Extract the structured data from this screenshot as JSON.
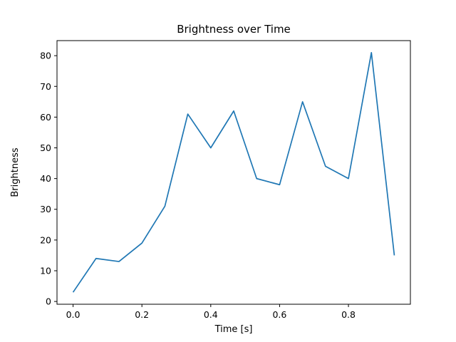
{
  "chart_data": {
    "type": "line",
    "title": "Brightness over Time",
    "xlabel": "Time [s]",
    "ylabel": "Brightness",
    "x": [
      0.0,
      0.0667,
      0.1333,
      0.2,
      0.2667,
      0.3333,
      0.4,
      0.4667,
      0.5333,
      0.6,
      0.6667,
      0.7333,
      0.8,
      0.8667,
      0.9333
    ],
    "y": [
      3,
      14,
      13,
      19,
      31,
      61,
      50,
      62,
      40,
      38,
      65,
      44,
      40,
      81,
      15
    ],
    "xlim": [
      -0.0467,
      0.98
    ],
    "ylim": [
      -0.9,
      84.9
    ],
    "xticks": [
      0.0,
      0.2,
      0.4,
      0.6,
      0.8
    ],
    "yticks": [
      0,
      10,
      20,
      30,
      40,
      50,
      60,
      70,
      80
    ],
    "line_color": "#1f77b4",
    "axis_color": "#000000",
    "grid": false,
    "legend_position": "none"
  }
}
